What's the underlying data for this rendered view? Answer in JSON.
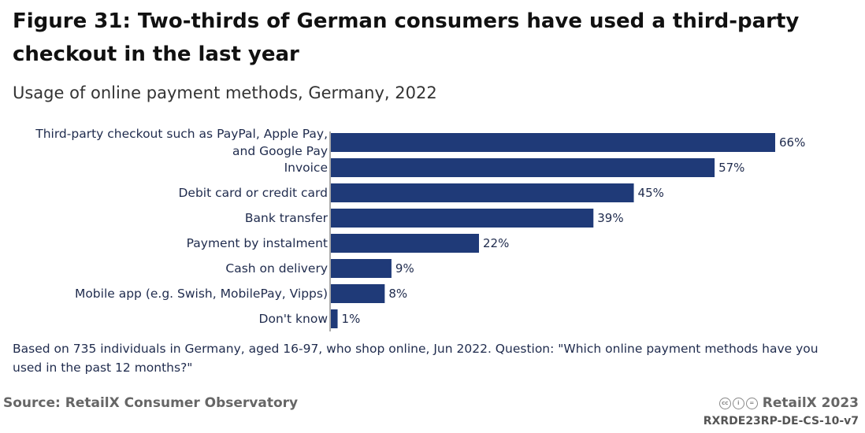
{
  "header": {
    "title": "Figure 31: Two-thirds of German consumers have used a third-party checkout in the last year",
    "subtitle": "Usage of online payment methods, Germany, 2022"
  },
  "chart_data": {
    "type": "bar",
    "orientation": "horizontal",
    "categories": [
      [
        "Third-party checkout such as PayPal, Apple Pay,",
        "and Google Pay"
      ],
      [
        "Invoice"
      ],
      [
        "Debit card or credit card"
      ],
      [
        "Bank transfer"
      ],
      [
        "Payment by instalment"
      ],
      [
        "Cash on delivery"
      ],
      [
        "Mobile app (e.g. Swish, MobilePay, Vipps)"
      ],
      [
        "Don't know"
      ]
    ],
    "values": [
      66,
      57,
      45,
      39,
      22,
      9,
      8,
      1
    ],
    "value_labels": [
      "66%",
      "57%",
      "45%",
      "39%",
      "22%",
      "9%",
      "8%",
      "1%"
    ],
    "unit": "%",
    "xlim": [
      0,
      66
    ],
    "bar_color": "#1f3a78",
    "grid": false,
    "legend": "none"
  },
  "footer": {
    "note": "Based on 735 individuals in Germany, aged 16-97, who shop online, Jun 2022. Question: \"Which online payment methods have you used in the past 12 months?\"",
    "source": "Source: RetailX Consumer Observatory",
    "brand": "RetailX 2023",
    "code": "RXRDE23RP-DE-CS-10-v7",
    "license_icons": [
      "cc",
      "by",
      "nd"
    ]
  }
}
